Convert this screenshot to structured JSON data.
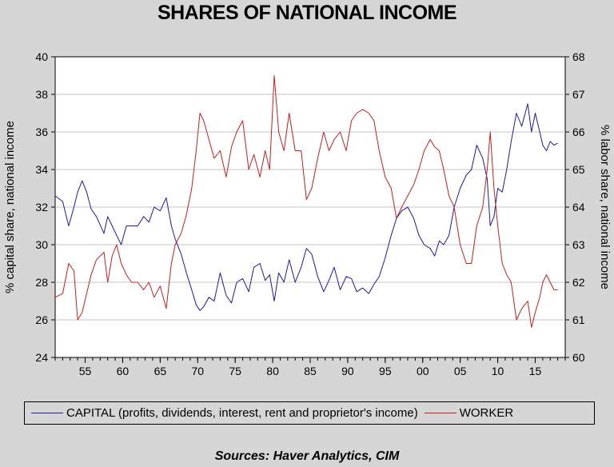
{
  "title": "SHARES OF NATIONAL INCOME",
  "source": "Sources:  Haver Analytics, CIM",
  "chart_data": {
    "type": "line",
    "title": "SHARES OF NATIONAL INCOME",
    "ylabel_left": "% capital share, national income",
    "ylabel_right": "% labor share, national income",
    "ylim_left": [
      24,
      40
    ],
    "ylim_right": [
      60,
      68
    ],
    "yticks_left": [
      "24",
      "26",
      "28",
      "30",
      "32",
      "34",
      "36",
      "38",
      "40"
    ],
    "yticks_right": [
      "60",
      "61",
      "62",
      "63",
      "64",
      "65",
      "66",
      "67",
      "68"
    ],
    "xlim": [
      1951,
      2019
    ],
    "xticks": [
      {
        "year": 1955,
        "label": "55"
      },
      {
        "year": 1960,
        "label": "60"
      },
      {
        "year": 1965,
        "label": "65"
      },
      {
        "year": 1970,
        "label": "70"
      },
      {
        "year": 1975,
        "label": "75"
      },
      {
        "year": 1980,
        "label": "80"
      },
      {
        "year": 1985,
        "label": "85"
      },
      {
        "year": 1990,
        "label": "90"
      },
      {
        "year": 1995,
        "label": "95"
      },
      {
        "year": 2000,
        "label": "00"
      },
      {
        "year": 2005,
        "label": "05"
      },
      {
        "year": 2010,
        "label": "10"
      },
      {
        "year": 2015,
        "label": "15"
      }
    ],
    "grid": true,
    "legend_position": "bottom",
    "series": [
      {
        "name": "CAPITAL (profits, dividends, interest, rent and proprietor's income)",
        "axis": "left",
        "color": "#1a1aa6",
        "x": [
          1951.0,
          1952.0,
          1952.8,
          1953.5,
          1954.0,
          1954.6,
          1955.2,
          1955.8,
          1956.5,
          1957.5,
          1958.0,
          1958.6,
          1959.2,
          1959.8,
          1960.5,
          1961.2,
          1962.0,
          1962.8,
          1963.5,
          1964.2,
          1965.0,
          1965.8,
          1966.5,
          1967.0,
          1967.8,
          1968.5,
          1969.2,
          1969.8,
          1970.3,
          1970.8,
          1971.5,
          1972.2,
          1973.0,
          1973.8,
          1974.5,
          1975.2,
          1976.0,
          1976.8,
          1977.5,
          1978.3,
          1979.0,
          1979.6,
          1980.2,
          1980.8,
          1981.5,
          1982.2,
          1983.0,
          1983.8,
          1984.5,
          1985.2,
          1986.0,
          1986.8,
          1987.5,
          1988.2,
          1989.0,
          1989.8,
          1990.5,
          1991.2,
          1992.0,
          1992.8,
          1993.5,
          1994.2,
          1995.0,
          1995.8,
          1996.5,
          1997.2,
          1998.0,
          1998.8,
          1999.5,
          2000.2,
          2001.0,
          2001.6,
          2002.2,
          2002.8,
          2003.5,
          2004.2,
          2005.0,
          2005.8,
          2006.5,
          2007.2,
          2008.0,
          2008.6,
          2009.0,
          2009.5,
          2010.0,
          2010.6,
          2011.2,
          2011.8,
          2012.5,
          2013.2,
          2014.0,
          2014.5,
          2015.0,
          2015.6,
          2016.0,
          2016.5,
          2017.0,
          2017.5,
          2018.0
        ],
        "values": [
          32.6,
          32.3,
          31.0,
          32.0,
          32.8,
          33.4,
          32.8,
          31.9,
          31.5,
          30.6,
          31.5,
          31.0,
          30.5,
          30.0,
          31.0,
          31.0,
          31.0,
          31.5,
          31.2,
          32.0,
          31.8,
          32.5,
          31.0,
          30.3,
          29.5,
          28.5,
          27.6,
          26.8,
          26.5,
          26.7,
          27.2,
          27.0,
          28.5,
          27.3,
          26.9,
          28.0,
          28.2,
          27.5,
          28.8,
          29.0,
          28.1,
          28.4,
          27.0,
          28.5,
          28.0,
          29.2,
          28.0,
          28.8,
          29.8,
          29.5,
          28.3,
          27.5,
          28.1,
          28.8,
          27.6,
          28.3,
          28.2,
          27.5,
          27.7,
          27.4,
          27.9,
          28.3,
          29.3,
          30.5,
          31.4,
          31.8,
          32.0,
          31.4,
          30.5,
          30.0,
          29.8,
          29.4,
          30.2,
          30.0,
          30.5,
          32.0,
          33.0,
          33.7,
          34.0,
          35.3,
          34.6,
          33.5,
          31.0,
          31.5,
          33.0,
          32.8,
          34.0,
          35.5,
          37.0,
          36.3,
          37.5,
          36.0,
          37.0,
          36.0,
          35.3,
          35.0,
          35.5,
          35.3,
          35.4
        ]
      },
      {
        "name": "WORKER",
        "axis": "right",
        "color": "#c81e1e",
        "x": [
          1951.0,
          1952.0,
          1952.8,
          1953.5,
          1954.0,
          1954.6,
          1955.2,
          1955.8,
          1956.5,
          1957.5,
          1958.0,
          1958.6,
          1959.2,
          1959.8,
          1960.5,
          1961.2,
          1962.0,
          1962.8,
          1963.5,
          1964.2,
          1965.0,
          1965.8,
          1966.5,
          1967.0,
          1967.8,
          1968.5,
          1969.2,
          1969.8,
          1970.3,
          1970.8,
          1971.5,
          1972.2,
          1973.0,
          1973.8,
          1974.5,
          1975.2,
          1976.0,
          1976.8,
          1977.5,
          1978.3,
          1979.0,
          1979.6,
          1980.2,
          1980.8,
          1981.5,
          1982.2,
          1983.0,
          1983.8,
          1984.5,
          1985.2,
          1986.0,
          1986.8,
          1987.5,
          1988.2,
          1989.0,
          1989.8,
          1990.5,
          1991.2,
          1992.0,
          1992.8,
          1993.5,
          1994.2,
          1995.0,
          1995.8,
          1996.5,
          1997.2,
          1998.0,
          1998.8,
          1999.5,
          2000.2,
          2001.0,
          2001.6,
          2002.2,
          2002.8,
          2003.5,
          2004.2,
          2005.0,
          2005.8,
          2006.5,
          2007.2,
          2008.0,
          2008.6,
          2009.0,
          2009.5,
          2010.0,
          2010.6,
          2011.2,
          2011.8,
          2012.5,
          2013.2,
          2014.0,
          2014.5,
          2015.0,
          2015.6,
          2016.0,
          2016.5,
          2017.0,
          2017.5,
          2018.0
        ],
        "values": [
          61.6,
          61.7,
          62.5,
          62.3,
          61.0,
          61.2,
          61.7,
          62.2,
          62.6,
          62.8,
          62.0,
          62.7,
          63.0,
          62.5,
          62.2,
          62.0,
          62.0,
          61.8,
          62.0,
          61.6,
          61.9,
          61.3,
          62.5,
          63.0,
          63.3,
          63.8,
          64.5,
          65.5,
          66.5,
          66.3,
          65.8,
          65.3,
          65.5,
          64.8,
          65.6,
          66.0,
          66.3,
          65.0,
          65.4,
          64.8,
          65.5,
          65.0,
          67.5,
          66.0,
          65.5,
          66.5,
          65.5,
          65.5,
          64.2,
          64.5,
          65.3,
          66.0,
          65.5,
          65.8,
          66.0,
          65.5,
          66.3,
          66.5,
          66.6,
          66.5,
          66.3,
          65.5,
          64.8,
          64.5,
          63.7,
          64.0,
          64.3,
          64.6,
          65.0,
          65.5,
          65.8,
          65.6,
          65.5,
          65.0,
          64.3,
          64.0,
          63.0,
          62.5,
          62.5,
          63.5,
          64.0,
          65.0,
          66.0,
          64.5,
          63.5,
          62.5,
          62.2,
          62.0,
          61.0,
          61.3,
          61.5,
          60.8,
          61.2,
          61.6,
          62.0,
          62.2,
          62.0,
          61.8,
          61.8
        ]
      }
    ]
  }
}
